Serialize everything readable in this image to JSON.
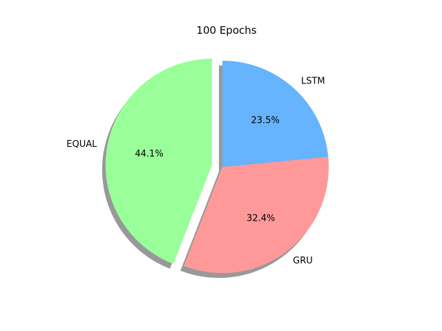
{
  "chart_data": {
    "type": "pie",
    "title": "100 Epochs",
    "start_angle_deg": 90,
    "direction": "counterclockwise",
    "shadow": true,
    "slices": [
      {
        "label": "EQUAL",
        "value": 44.1,
        "pct_label": "44.1%",
        "color": "#99ff99",
        "explode": 0.1
      },
      {
        "label": "GRU",
        "value": 32.4,
        "pct_label": "32.4%",
        "color": "#ff9999",
        "explode": 0
      },
      {
        "label": "LSTM",
        "value": 23.5,
        "pct_label": "23.5%",
        "color": "#66b3ff",
        "explode": 0
      }
    ]
  }
}
